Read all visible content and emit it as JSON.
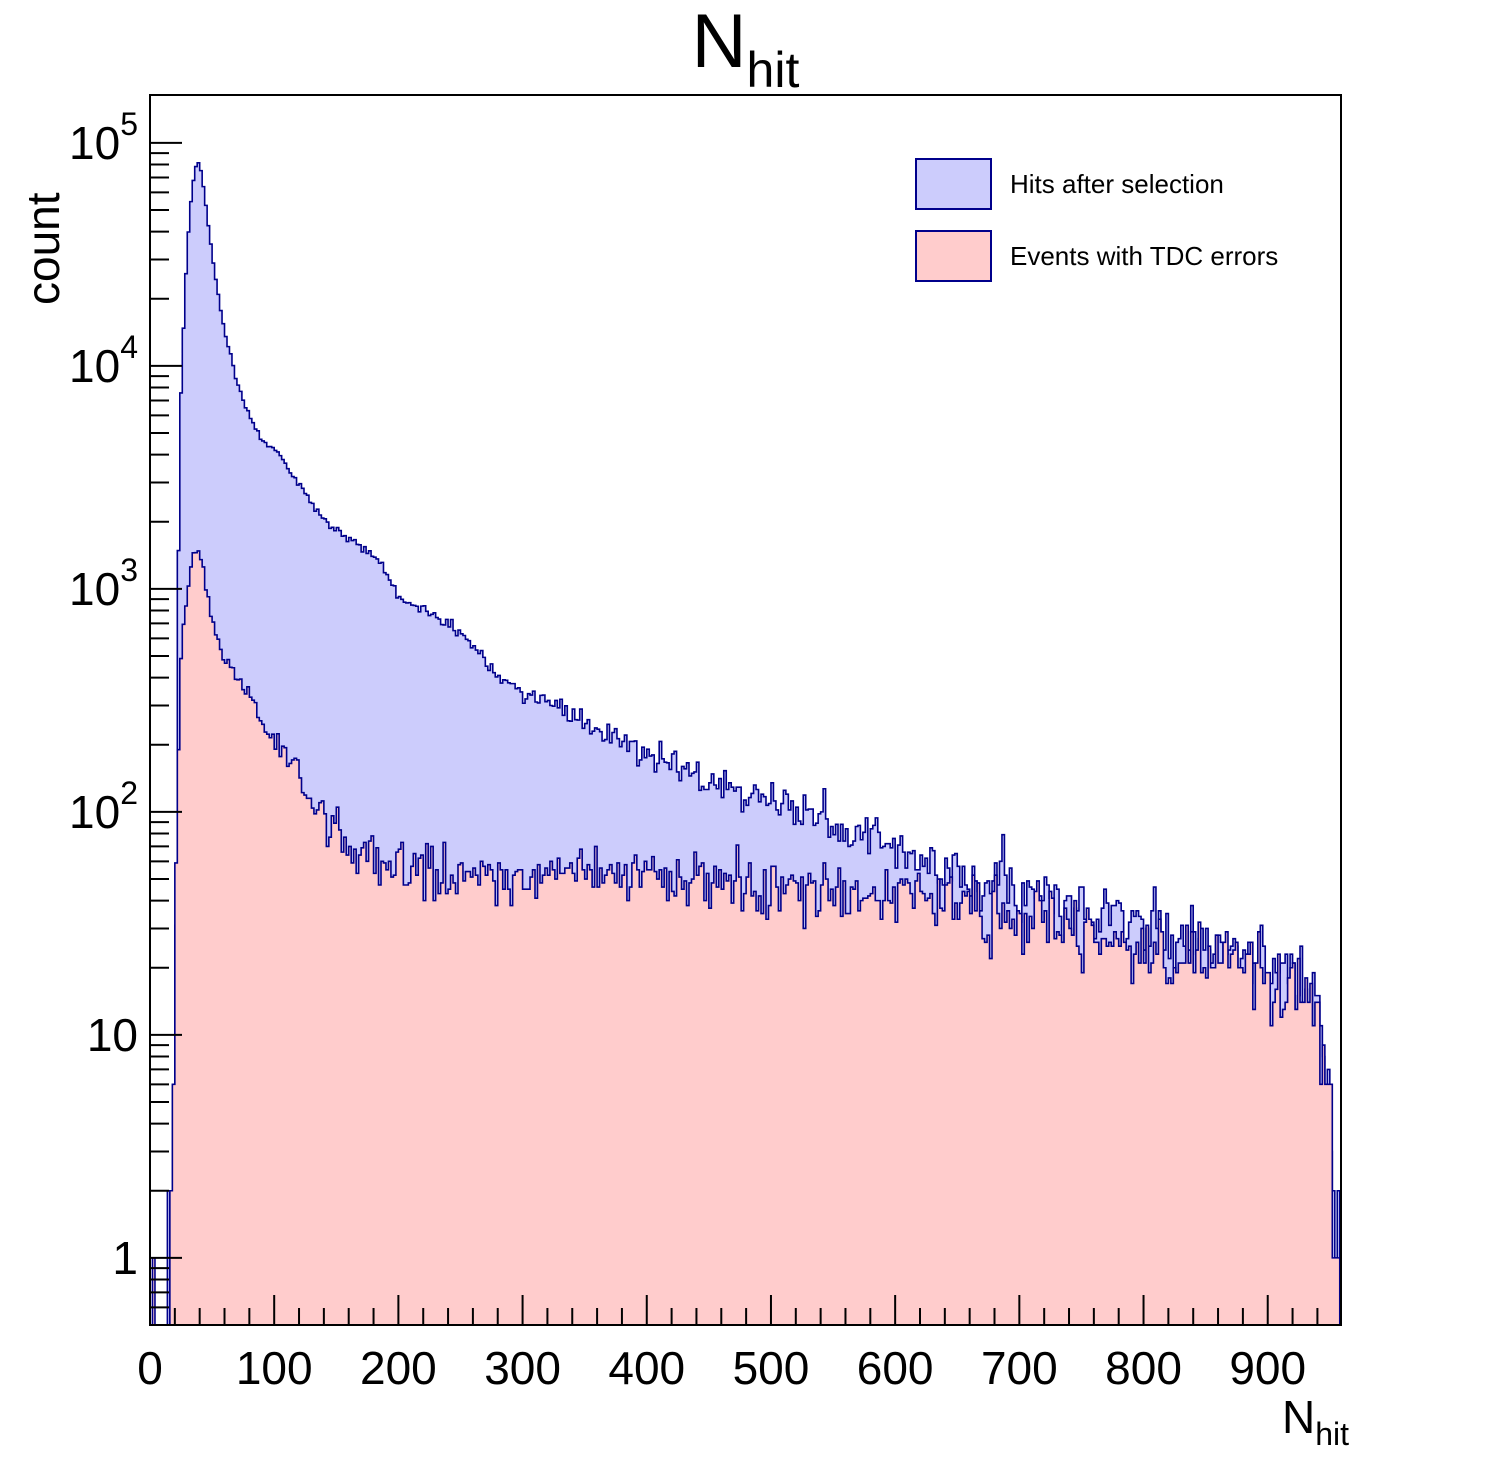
{
  "title": {
    "main": "N",
    "sub": "hit"
  },
  "y_axis": {
    "label": "count",
    "scale": "log",
    "min": 0.5,
    "max": 164000,
    "major_ticks": [
      {
        "value": 1,
        "text": "1",
        "sup": ""
      },
      {
        "value": 10,
        "text": "10",
        "sup": ""
      },
      {
        "value": 100,
        "text": "10",
        "sup": "2"
      },
      {
        "value": 1000,
        "text": "10",
        "sup": "3"
      },
      {
        "value": 10000,
        "text": "10",
        "sup": "4"
      },
      {
        "value": 100000,
        "text": "10",
        "sup": "5"
      }
    ]
  },
  "x_axis": {
    "label_main": "N",
    "label_sub": "hit",
    "min": 0,
    "max": 959,
    "major_ticks": [
      0,
      100,
      200,
      300,
      400,
      500,
      600,
      700,
      800,
      900
    ],
    "minor_tick_step": 20
  },
  "legend": {
    "items": [
      {
        "label": "Hits after selection",
        "fill": "#ccccfc",
        "stroke": "#00008b"
      },
      {
        "label": "Events with TDC errors",
        "fill": "#ffcccc",
        "stroke": "#00008b"
      }
    ]
  },
  "colors": {
    "frame": "#000000",
    "text": "#000000",
    "hist_line": "#00008b"
  },
  "chart_data": {
    "type": "histogram-overlay",
    "x_range": [
      0,
      959
    ],
    "bin_width": 2,
    "noise_coeff": 1.0,
    "series": [
      {
        "name": "Hits after selection",
        "fill": "#ccccfc",
        "line": "#00008b",
        "seed": 1013904223,
        "anchors": [
          [
            3,
            0
          ],
          [
            11,
            0
          ],
          [
            12,
            2
          ],
          [
            13,
            0
          ],
          [
            14,
            3
          ],
          [
            15,
            2
          ],
          [
            16,
            0
          ],
          [
            19,
            0
          ],
          [
            20,
            3
          ],
          [
            21,
            40
          ],
          [
            22,
            400
          ],
          [
            23,
            1500
          ],
          [
            24,
            4000
          ],
          [
            25,
            7500
          ],
          [
            26,
            11000
          ],
          [
            28,
            20000
          ],
          [
            30,
            33000
          ],
          [
            32,
            48000
          ],
          [
            34,
            62000
          ],
          [
            36,
            74000
          ],
          [
            38,
            83000
          ],
          [
            40,
            80000
          ],
          [
            42,
            70000
          ],
          [
            44,
            58000
          ],
          [
            46,
            47000
          ],
          [
            48,
            38500
          ],
          [
            50,
            31500
          ],
          [
            52,
            26500
          ],
          [
            54,
            22500
          ],
          [
            56,
            19000
          ],
          [
            58,
            16500
          ],
          [
            60,
            14500
          ],
          [
            63,
            12200
          ],
          [
            66,
            10400
          ],
          [
            70,
            8600
          ],
          [
            74,
            7300
          ],
          [
            78,
            6400
          ],
          [
            82,
            5700
          ],
          [
            86,
            5100
          ],
          [
            90,
            4700
          ],
          [
            95,
            4400
          ],
          [
            100,
            4300
          ],
          [
            107,
            3900
          ],
          [
            114,
            3300
          ],
          [
            121,
            2900
          ],
          [
            128,
            2500
          ],
          [
            135,
            2250
          ],
          [
            143,
            2000
          ],
          [
            150,
            1800
          ],
          [
            158,
            1700
          ],
          [
            166,
            1600
          ],
          [
            175,
            1500
          ],
          [
            185,
            1300
          ],
          [
            195,
            1050
          ],
          [
            200,
            930
          ],
          [
            210,
            870
          ],
          [
            220,
            800
          ],
          [
            230,
            740
          ],
          [
            240,
            690
          ],
          [
            250,
            620
          ],
          [
            260,
            550
          ],
          [
            270,
            480
          ],
          [
            280,
            420
          ],
          [
            290,
            380
          ],
          [
            300,
            350
          ],
          [
            310,
            320
          ],
          [
            320,
            300
          ],
          [
            330,
            286
          ],
          [
            340,
            270
          ],
          [
            350,
            252
          ],
          [
            360,
            233
          ],
          [
            370,
            215
          ],
          [
            380,
            204
          ],
          [
            390,
            196
          ],
          [
            400,
            182
          ],
          [
            410,
            170
          ],
          [
            420,
            162
          ],
          [
            430,
            155
          ],
          [
            440,
            148
          ],
          [
            450,
            140
          ],
          [
            460,
            133
          ],
          [
            470,
            127
          ],
          [
            480,
            121
          ],
          [
            490,
            115
          ],
          [
            500,
            110
          ],
          [
            515,
            103
          ],
          [
            530,
            97
          ],
          [
            545,
            88
          ],
          [
            560,
            81
          ],
          [
            575,
            76
          ],
          [
            590,
            70
          ],
          [
            605,
            64
          ],
          [
            620,
            60
          ],
          [
            635,
            57
          ],
          [
            650,
            55
          ],
          [
            665,
            50
          ],
          [
            680,
            47
          ],
          [
            695,
            46
          ],
          [
            710,
            43
          ],
          [
            725,
            41
          ],
          [
            740,
            38
          ],
          [
            755,
            36
          ],
          [
            770,
            34
          ],
          [
            785,
            32
          ],
          [
            800,
            31
          ],
          [
            815,
            29
          ],
          [
            830,
            27
          ],
          [
            845,
            25
          ],
          [
            860,
            24
          ],
          [
            875,
            22
          ],
          [
            890,
            21
          ],
          [
            905,
            20
          ],
          [
            920,
            18
          ],
          [
            930,
            17
          ],
          [
            938,
            15
          ],
          [
            944,
            12
          ],
          [
            948,
            8
          ],
          [
            951,
            5
          ],
          [
            954,
            3
          ],
          [
            956,
            2
          ],
          [
            958,
            1
          ],
          [
            959,
            0
          ]
        ]
      },
      {
        "name": "Events with TDC errors",
        "fill": "#ffcccc",
        "line": "#00008b",
        "seed": 747796405,
        "anchors": [
          [
            2,
            0
          ],
          [
            3,
            1
          ],
          [
            4,
            0
          ],
          [
            6,
            1
          ],
          [
            7,
            0
          ],
          [
            9,
            1
          ],
          [
            10,
            0
          ],
          [
            15,
            0
          ],
          [
            16,
            1
          ],
          [
            17,
            2
          ],
          [
            18,
            4
          ],
          [
            19,
            10
          ],
          [
            20,
            25
          ],
          [
            21,
            55
          ],
          [
            22,
            110
          ],
          [
            23,
            200
          ],
          [
            24,
            320
          ],
          [
            25,
            450
          ],
          [
            26,
            560
          ],
          [
            27,
            670
          ],
          [
            28,
            780
          ],
          [
            29,
            880
          ],
          [
            30,
            990
          ],
          [
            32,
            1150
          ],
          [
            34,
            1300
          ],
          [
            36,
            1430
          ],
          [
            38,
            1500
          ],
          [
            40,
            1440
          ],
          [
            42,
            1290
          ],
          [
            44,
            1120
          ],
          [
            46,
            980
          ],
          [
            48,
            850
          ],
          [
            50,
            750
          ],
          [
            52,
            680
          ],
          [
            54,
            620
          ],
          [
            56,
            570
          ],
          [
            58,
            530
          ],
          [
            60,
            500
          ],
          [
            63,
            470
          ],
          [
            67,
            440
          ],
          [
            71,
            400
          ],
          [
            75,
            370
          ],
          [
            79,
            330
          ],
          [
            83,
            300
          ],
          [
            87,
            275
          ],
          [
            92,
            250
          ],
          [
            97,
            228
          ],
          [
            101,
            210
          ],
          [
            106,
            190
          ],
          [
            111,
            172
          ],
          [
            116,
            155
          ],
          [
            121,
            140
          ],
          [
            126,
            125
          ],
          [
            131,
            110
          ],
          [
            137,
            98
          ],
          [
            143,
            88
          ],
          [
            150,
            80
          ],
          [
            158,
            72
          ],
          [
            166,
            67
          ],
          [
            175,
            63
          ],
          [
            185,
            59
          ],
          [
            195,
            57
          ],
          [
            210,
            55
          ],
          [
            225,
            52
          ],
          [
            240,
            50
          ],
          [
            260,
            52
          ],
          [
            280,
            53
          ],
          [
            300,
            52
          ],
          [
            320,
            53
          ],
          [
            340,
            54
          ],
          [
            360,
            53
          ],
          [
            380,
            52
          ],
          [
            400,
            51
          ],
          [
            420,
            50
          ],
          [
            440,
            49
          ],
          [
            460,
            48
          ],
          [
            480,
            47
          ],
          [
            500,
            46
          ],
          [
            520,
            45
          ],
          [
            540,
            44
          ],
          [
            560,
            43
          ],
          [
            580,
            42
          ],
          [
            600,
            41
          ],
          [
            620,
            39
          ],
          [
            640,
            38
          ],
          [
            660,
            36
          ],
          [
            680,
            34
          ],
          [
            700,
            33
          ],
          [
            720,
            31
          ],
          [
            740,
            29
          ],
          [
            760,
            28
          ],
          [
            780,
            26
          ],
          [
            800,
            25
          ],
          [
            820,
            23
          ],
          [
            840,
            22
          ],
          [
            860,
            20
          ],
          [
            880,
            19
          ],
          [
            900,
            18
          ],
          [
            915,
            16
          ],
          [
            930,
            15
          ],
          [
            938,
            13
          ],
          [
            944,
            10
          ],
          [
            948,
            7
          ],
          [
            951,
            4
          ],
          [
            954,
            2
          ],
          [
            956,
            1
          ],
          [
            958,
            1
          ],
          [
            959,
            0
          ]
        ]
      }
    ]
  }
}
